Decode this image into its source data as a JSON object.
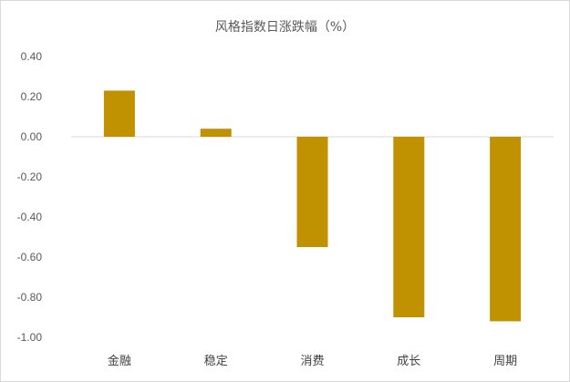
{
  "chart_data": {
    "type": "bar",
    "title": "风格指数日涨跌幅（%）",
    "categories": [
      "金融",
      "稳定",
      "消费",
      "成长",
      "周期"
    ],
    "values": [
      0.23,
      0.04,
      -0.55,
      -0.9,
      -0.92
    ],
    "ylim": [
      -1.0,
      0.4
    ],
    "y_ticks": [
      "0.40",
      "0.20",
      "0.00",
      "-0.20",
      "-0.40",
      "-0.60",
      "-0.80",
      "-1.00"
    ],
    "xlabel": "",
    "ylabel": "",
    "grid": false,
    "legend": "none",
    "bar_color": "#C09100",
    "axis_color": "#d9d9d9"
  }
}
